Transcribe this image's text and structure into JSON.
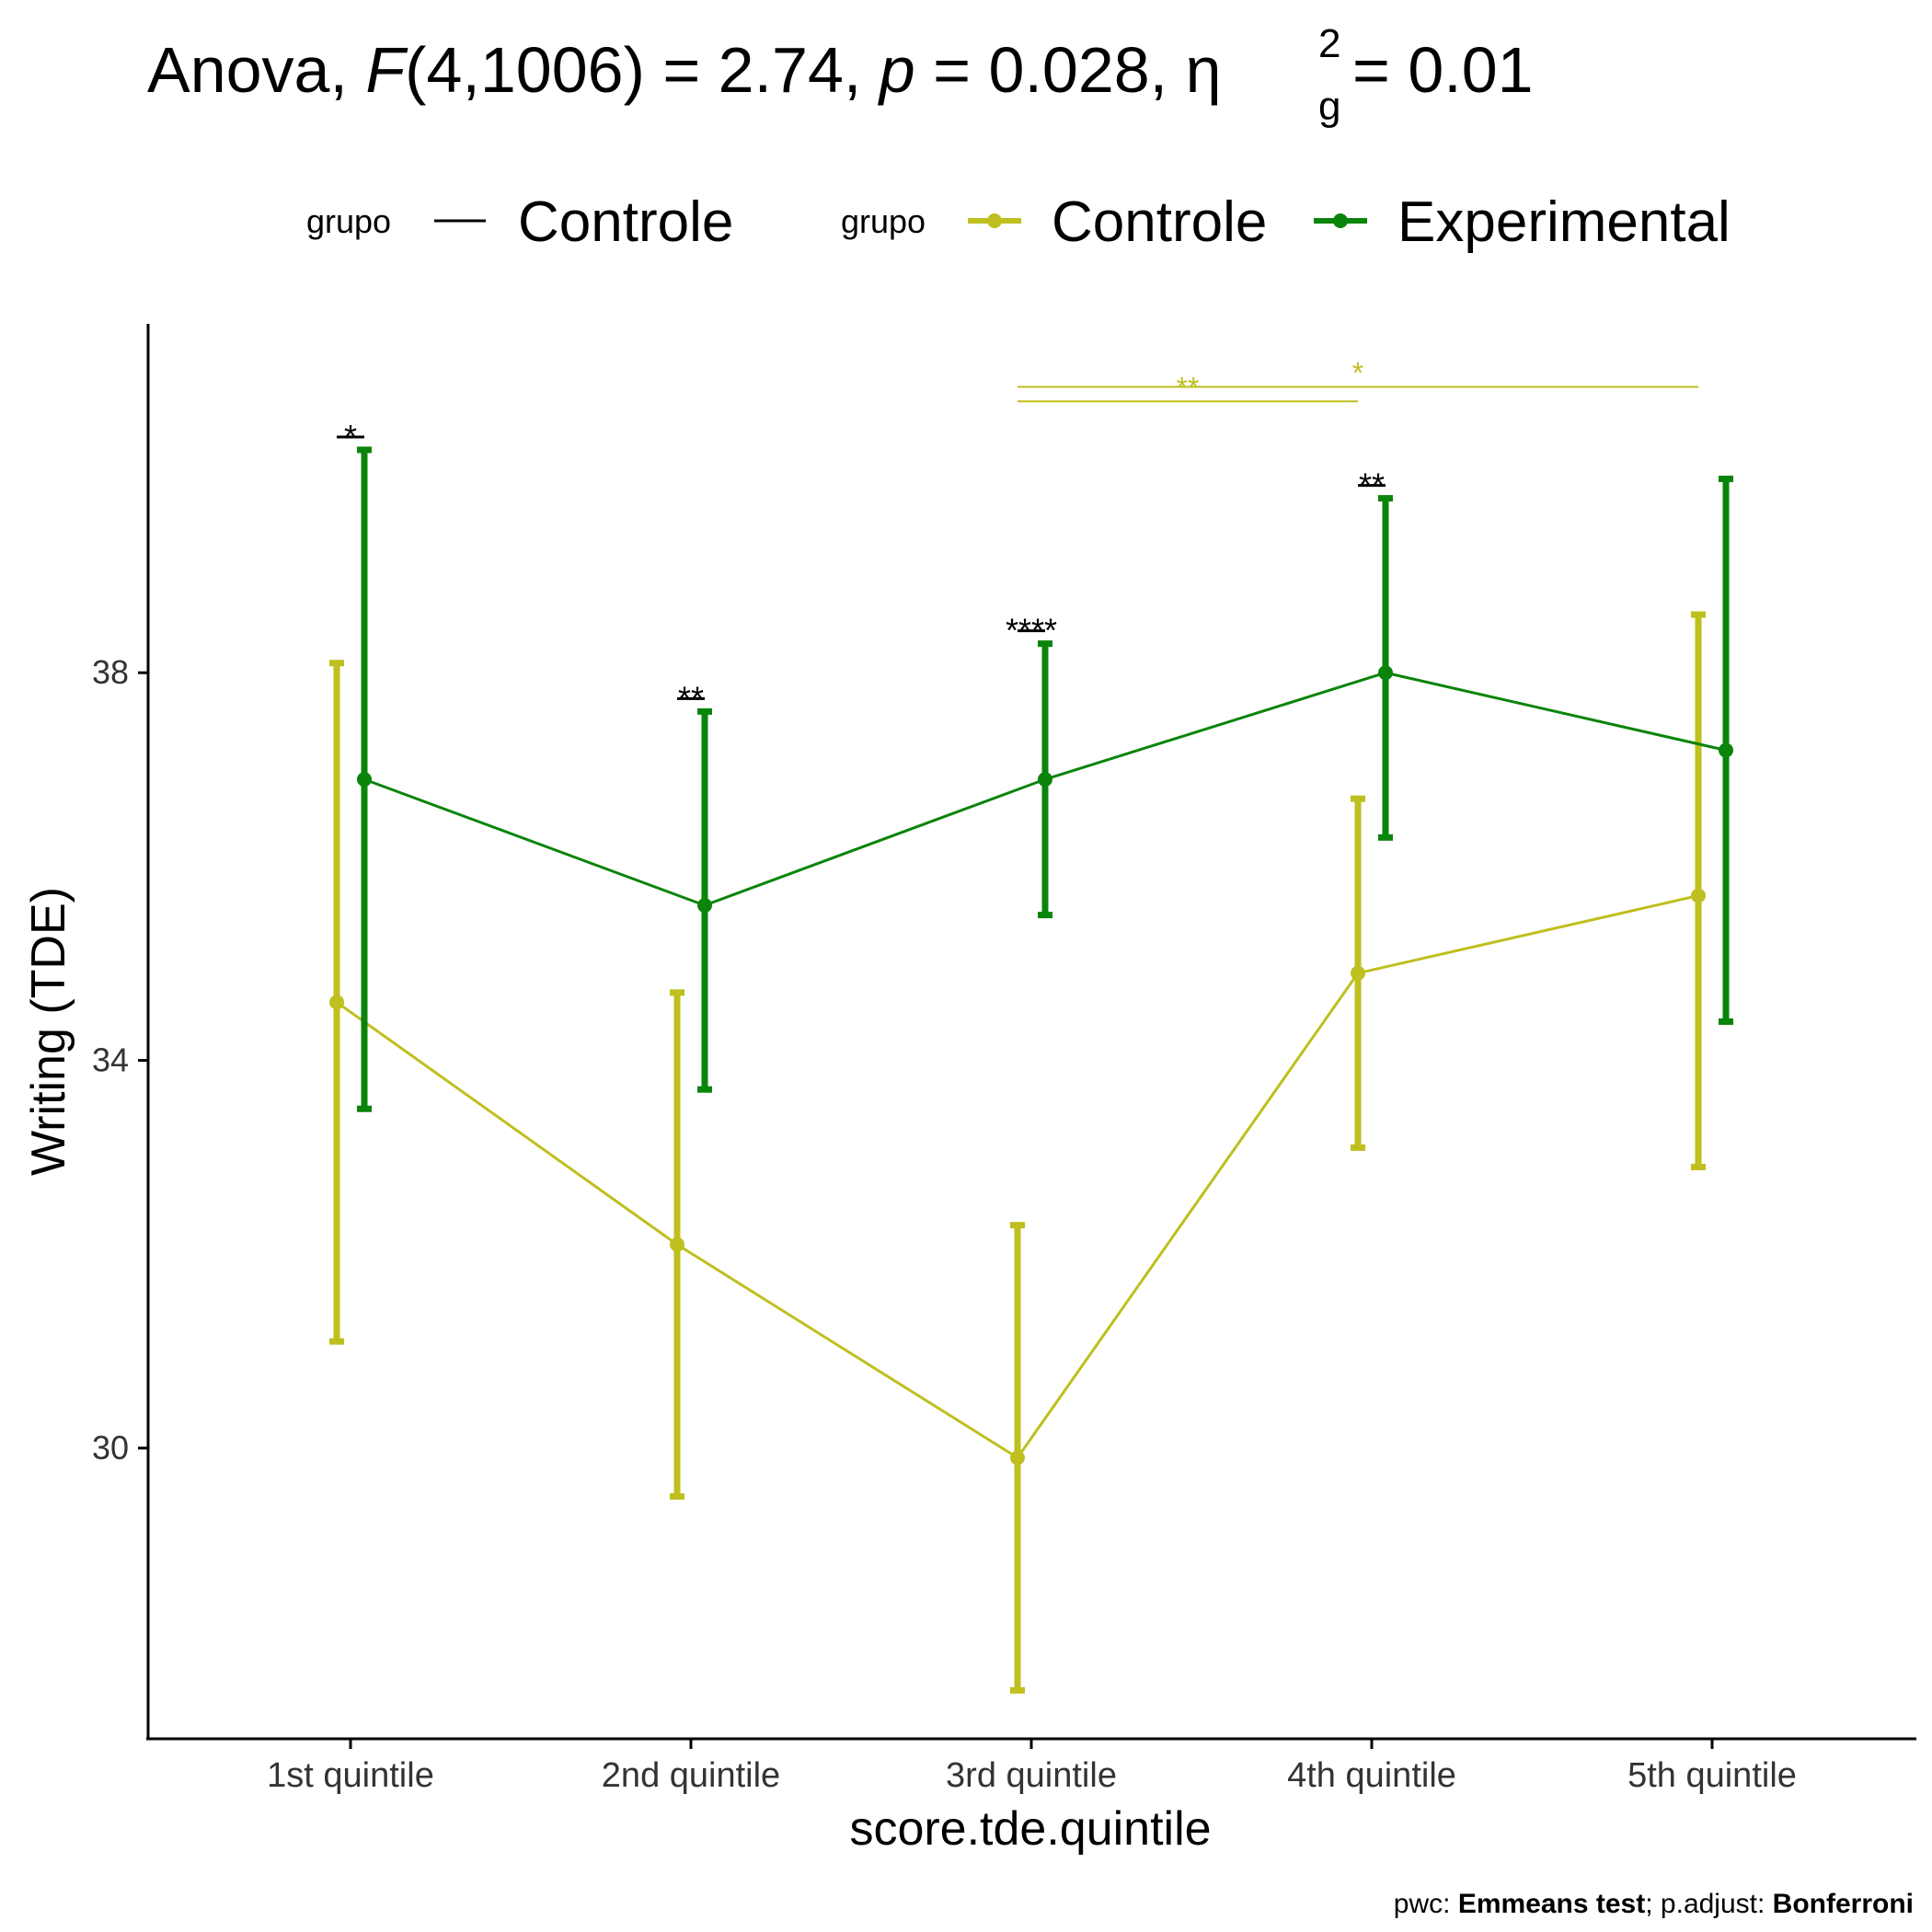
{
  "chart_data": {
    "type": "line",
    "title": {
      "pre": "Anova, ",
      "F_letter": "F",
      "F_args": "(4,1006) = 2.74, ",
      "p_letter": "p",
      "p_value": " = 0.028, ",
      "eta": "η",
      "eta_sub": "g",
      "eta_sup": "2",
      "eta_value": " = 0.01"
    },
    "xlabel": "score.tde.quintile",
    "ylabel": "Writing (TDE)",
    "categories": [
      "1st quintile",
      "2nd quintile",
      "3rd quintile",
      "4th quintile",
      "5th quintile"
    ],
    "yticks": [
      30,
      34,
      38
    ],
    "ylim": [
      27.0,
      41.6
    ],
    "legend": {
      "title": "grupo",
      "position": "top",
      "line_key_label": "Controle",
      "point_key_labels": [
        "Controle",
        "Experimental"
      ]
    },
    "series": [
      {
        "name": "Controle",
        "color": "#bfbf1f",
        "means": [
          34.6,
          32.1,
          29.9,
          34.9,
          35.7
        ],
        "lower": [
          31.1,
          29.5,
          27.5,
          33.1,
          32.9
        ],
        "upper": [
          38.1,
          34.7,
          32.3,
          36.7,
          38.6
        ]
      },
      {
        "name": "Experimental",
        "color": "#0a840a",
        "means": [
          36.9,
          35.6,
          36.9,
          38.0,
          37.2
        ],
        "lower": [
          33.5,
          33.7,
          35.5,
          36.3,
          34.4
        ],
        "upper": [
          40.3,
          37.6,
          38.3,
          39.8,
          40.0
        ]
      }
    ],
    "group_annotations": [
      {
        "label": "*",
        "y": 40.3,
        "color": "#000000",
        "category": 0
      },
      {
        "label": "**",
        "y": 37.6,
        "color": "#000000",
        "category": 1
      },
      {
        "label": "****",
        "y": 38.3,
        "color": "#000000",
        "category": 2
      },
      {
        "label": "**",
        "y": 39.8,
        "color": "#000000",
        "category": 3
      }
    ],
    "bracket_annotations": [
      {
        "label": "**",
        "from": 2,
        "to": 3,
        "y": 40.8,
        "color": "#bfbf1f"
      },
      {
        "label": "*",
        "from": 2,
        "to": 4,
        "y": 40.95,
        "color": "#bfbf1f"
      }
    ],
    "caption": {
      "prefix": "pwc: ",
      "test": "Emmeans test",
      "middle": "; p.adjust: ",
      "method": "Bonferroni"
    }
  }
}
